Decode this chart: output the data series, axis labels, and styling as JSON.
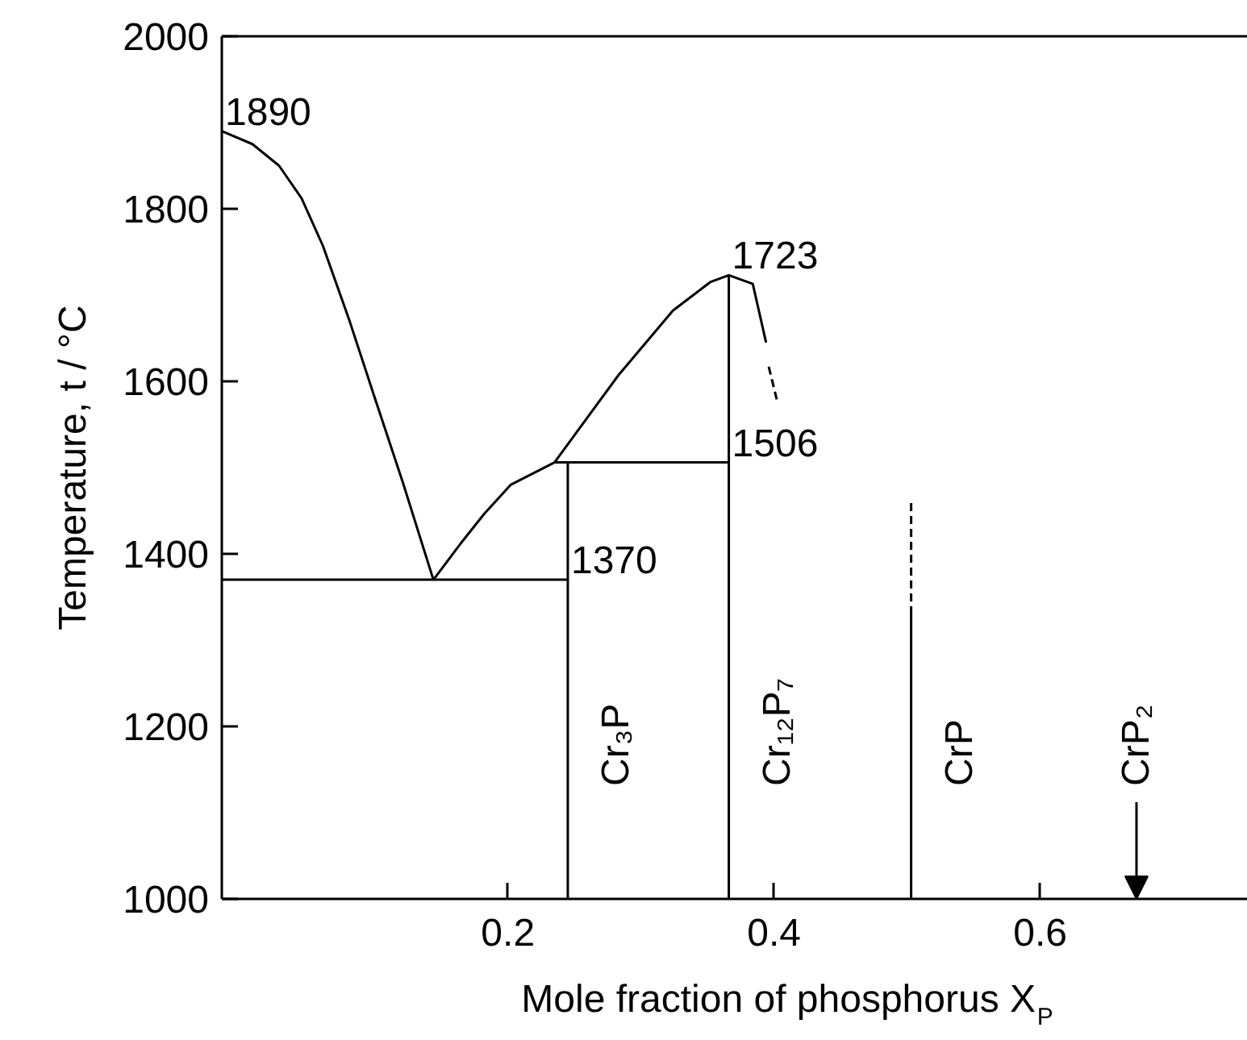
{
  "chart_data": {
    "type": "line",
    "xlabel": "Mole fraction of phosphorus X$_{P}$",
    "ylabel": "Temperature, t / °C",
    "xlim": [
      -0.015,
      0.756
    ],
    "ylim": [
      1000,
      2000
    ],
    "xticks": [
      0.2,
      0.4,
      0.6
    ],
    "yticks": [
      1000,
      1200,
      1400,
      1600,
      1800,
      2000
    ],
    "grid": false,
    "line_style": "solid",
    "series": [
      {
        "color": "#000000",
        "x": [
          -0.015,
          0.008,
          0.028,
          0.045,
          0.061,
          0.081,
          0.101,
          0.121,
          0.144
        ],
        "values": [
          1890,
          1875,
          1850,
          1812,
          1757,
          1670,
          1576,
          1483,
          1370
        ],
        "value_labels": [
          "1890",
          null,
          null,
          null,
          null,
          null,
          null,
          null,
          null
        ]
      },
      {
        "color": "#000000",
        "x": [
          -0.015,
          0.245
        ],
        "values": [
          1370,
          1370
        ],
        "value_labels": [
          null,
          "1370"
        ]
      },
      {
        "color": "#000000",
        "x": [
          0.144,
          0.166,
          0.182,
          0.202,
          0.235
        ],
        "values": [
          1370,
          1415,
          1446,
          1480,
          1506
        ]
      },
      {
        "color": "#000000",
        "x": [
          0.235,
          0.366
        ],
        "values": [
          1506,
          1506
        ],
        "value_labels": [
          null,
          "1506"
        ]
      },
      {
        "color": "#000000",
        "x": [
          0.235,
          0.283,
          0.324,
          0.352,
          0.366,
          0.384,
          0.394
        ],
        "values": [
          1506,
          1607,
          1682,
          1715,
          1723,
          1713,
          1645
        ],
        "value_labels": [
          null,
          null,
          null,
          null,
          "1723",
          null,
          null
        ]
      },
      {
        "color": "#000000",
        "x": [
          0.396,
          0.402
        ],
        "values": [
          1617,
          1579
        ],
        "line_style": "dashed"
      },
      {
        "name": "Cr₃P",
        "color": "#000000",
        "x": [
          0.245,
          0.245
        ],
        "values": [
          1000,
          1506
        ]
      },
      {
        "name": "Cr₁₂P₇",
        "color": "#000000",
        "x": [
          0.366,
          0.366
        ],
        "values": [
          1000,
          1723
        ]
      },
      {
        "name": "CrP",
        "color": "#000000",
        "x": [
          0.503,
          0.503
        ],
        "values": [
          1000,
          1330
        ]
      },
      {
        "color": "#000000",
        "x": [
          0.503,
          0.503
        ],
        "values": [
          1330,
          1460
        ],
        "line_style": "dashed"
      }
    ],
    "annotations": [
      "CrP₂"
    ]
  }
}
